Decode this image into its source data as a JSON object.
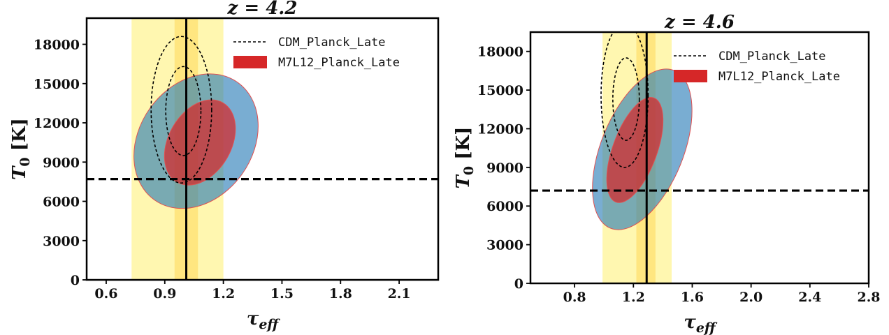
{
  "chart_data": [
    {
      "type": "contour",
      "title": "z = 4.2",
      "xlabel": "τ_eff",
      "ylabel": "T_0 [K]",
      "xlim": [
        0.5,
        2.3
      ],
      "ylim": [
        0,
        20000
      ],
      "xticks": [
        "0.6",
        "0.9",
        "1.2",
        "1.5",
        "1.8",
        "2.1"
      ],
      "yticks": [
        "0",
        "3000",
        "6000",
        "9000",
        "12000",
        "15000",
        "18000"
      ],
      "bands": [
        {
          "x0": 0.73,
          "x1": 1.2,
          "color": "#fff7b0"
        },
        {
          "x0": 0.95,
          "x1": 1.07,
          "color": "#ffe680"
        }
      ],
      "vline": 1.01,
      "hline": 7700,
      "legend_placement": "upper-right",
      "series": [
        {
          "name": "CDM_Planck_Late",
          "style": "dashed",
          "color": "#000000",
          "contours": [
            {
              "cx": 0.985,
              "cy": 13000,
              "rx": 0.155,
              "ry": 5600,
              "angle": 0
            },
            {
              "cx": 0.995,
              "cy": 12900,
              "rx": 0.09,
              "ry": 3400,
              "angle": 0
            }
          ]
        },
        {
          "name": "M7L12_Planck_Late",
          "style": "filled",
          "colors": [
            "#1f77b4",
            "#d62728"
          ],
          "contours": [
            {
              "cx": 1.06,
              "cy": 10600,
              "rx": 0.29,
              "ry": 5500,
              "angle": 35
            },
            {
              "cx": 1.08,
              "cy": 10500,
              "rx": 0.16,
              "ry": 3500,
              "angle": 30
            }
          ]
        }
      ]
    },
    {
      "type": "contour",
      "title": "z = 4.6",
      "xlabel": "τ_eff",
      "ylabel": "T_0 [K]",
      "xlim": [
        0.5,
        2.8
      ],
      "ylim": [
        0,
        19500
      ],
      "xticks": [
        "0.8",
        "1.2",
        "1.6",
        "2.0",
        "2.4",
        "2.8"
      ],
      "yticks": [
        "0",
        "3000",
        "6000",
        "9000",
        "12000",
        "15000",
        "18000"
      ],
      "bands": [
        {
          "x0": 0.99,
          "x1": 1.46,
          "color": "#fff7b0"
        },
        {
          "x0": 1.22,
          "x1": 1.35,
          "color": "#ffe680"
        }
      ],
      "vline": 1.29,
      "hline": 7200,
      "legend_placement": "upper-right",
      "series": [
        {
          "name": "CDM_Planck_Late",
          "style": "dashed",
          "color": "#000000",
          "contours": [
            {
              "cx": 1.14,
              "cy": 14600,
              "rx": 0.16,
              "ry": 5600,
              "angle": 0
            },
            {
              "cx": 1.15,
              "cy": 14300,
              "rx": 0.09,
              "ry": 3200,
              "angle": 0
            }
          ]
        },
        {
          "name": "M7L12_Planck_Late",
          "style": "filled",
          "colors": [
            "#1f77b4",
            "#d62728"
          ],
          "contours": [
            {
              "cx": 1.26,
              "cy": 10400,
              "rx": 0.28,
              "ry": 6600,
              "angle": 22
            },
            {
              "cx": 1.21,
              "cy": 10350,
              "rx": 0.15,
              "ry": 4300,
              "angle": 20
            }
          ]
        }
      ]
    }
  ]
}
